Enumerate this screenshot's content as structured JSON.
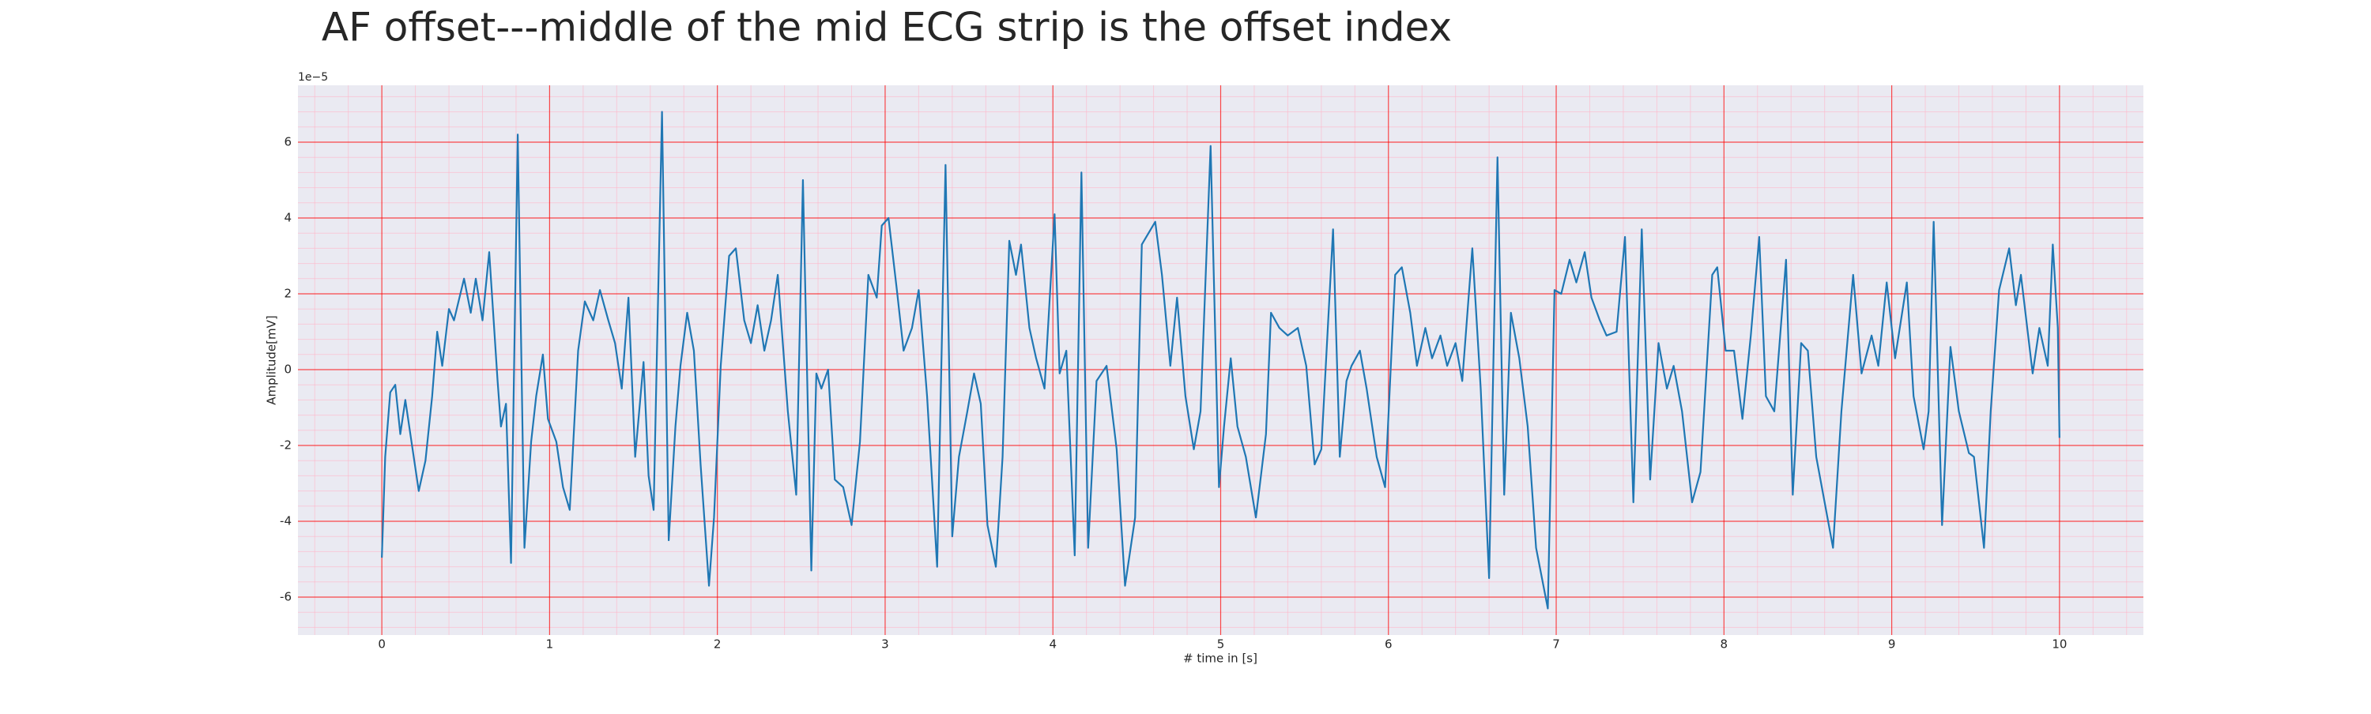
{
  "chart_data": {
    "type": "line",
    "title": "AF offset---middle of the mid ECG strip is the offset index",
    "x_label": "# time in [s]",
    "y_label": "Amplitude[mV]",
    "y_offset_text": "1e−5",
    "xlim": [
      -0.5,
      10.5
    ],
    "ylim": [
      -7,
      7.5
    ],
    "xticks": [
      0,
      1,
      2,
      3,
      4,
      5,
      6,
      7,
      8,
      9,
      10
    ],
    "yticks": [
      -6,
      -4,
      -2,
      0,
      2,
      4,
      6
    ],
    "grid": true,
    "grid_color": "#ff0000",
    "minor_grid": true,
    "minor_grid_color": "#ffb6c8",
    "minor_divisions": 5,
    "background": "#eaeaf2",
    "series": [
      {
        "name": "ECG",
        "color": "#1f77b4",
        "x": [
          0,
          0.02,
          0.05,
          0.08,
          0.11,
          0.14,
          0.17,
          0.22,
          0.26,
          0.3,
          0.33,
          0.36,
          0.4,
          0.43,
          0.49,
          0.53,
          0.56,
          0.6,
          0.64,
          0.69,
          0.71,
          0.74,
          0.77,
          0.81,
          0.85,
          0.89,
          0.92,
          0.96,
          0.99,
          1.04,
          1.08,
          1.12,
          1.17,
          1.21,
          1.26,
          1.3,
          1.35,
          1.39,
          1.43,
          1.47,
          1.51,
          1.56,
          1.59,
          1.62,
          1.67,
          1.71,
          1.75,
          1.78,
          1.82,
          1.86,
          1.9,
          1.95,
          1.98,
          2.02,
          2.07,
          2.11,
          2.16,
          2.2,
          2.24,
          2.28,
          2.32,
          2.36,
          2.42,
          2.47,
          2.51,
          2.56,
          2.59,
          2.62,
          2.66,
          2.7,
          2.75,
          2.8,
          2.85,
          2.9,
          2.95,
          2.98,
          3.02,
          3.07,
          3.11,
          3.16,
          3.2,
          3.25,
          3.31,
          3.36,
          3.4,
          3.44,
          3.49,
          3.53,
          3.57,
          3.61,
          3.66,
          3.7,
          3.74,
          3.78,
          3.81,
          3.86,
          3.9,
          3.95,
          4.01,
          4.04,
          4.08,
          4.13,
          4.17,
          4.21,
          4.26,
          4.32,
          4.38,
          4.43,
          4.49,
          4.53,
          4.61,
          4.65,
          4.7,
          4.74,
          4.79,
          4.84,
          4.88,
          4.94,
          4.99,
          5.02,
          5.06,
          5.1,
          5.15,
          5.21,
          5.27,
          5.3,
          5.35,
          5.4,
          5.46,
          5.51,
          5.56,
          5.6,
          5.67,
          5.71,
          5.75,
          5.78,
          5.83,
          5.87,
          5.93,
          5.98,
          6.04,
          6.08,
          6.13,
          6.17,
          6.22,
          6.26,
          6.31,
          6.35,
          6.4,
          6.44,
          6.5,
          6.55,
          6.6,
          6.65,
          6.69,
          6.73,
          6.78,
          6.83,
          6.88,
          6.95,
          6.99,
          7.03,
          7.08,
          7.12,
          7.17,
          7.21,
          7.26,
          7.3,
          7.36,
          7.41,
          7.46,
          7.51,
          7.56,
          7.61,
          7.66,
          7.7,
          7.75,
          7.81,
          7.86,
          7.93,
          7.96,
          8.01,
          8.06,
          8.11,
          8.16,
          8.21,
          8.25,
          8.3,
          8.37,
          8.41,
          8.46,
          8.5,
          8.55,
          8.65,
          8.7,
          8.77,
          8.82,
          8.88,
          8.92,
          8.97,
          9.02,
          9.09,
          9.13,
          9.19,
          9.22,
          9.25,
          9.3,
          9.35,
          9.4,
          9.46,
          9.49,
          9.55,
          9.59,
          9.64,
          9.7,
          9.74,
          9.77,
          9.84,
          9.88,
          9.93,
          9.96,
          9.99,
          10.0
        ],
        "values": [
          -4.96,
          -2.3,
          -0.6,
          -0.4,
          -1.7,
          -0.8,
          -1.7,
          -3.2,
          -2.4,
          -0.7,
          1.0,
          0.1,
          1.6,
          1.3,
          2.4,
          1.5,
          2.4,
          1.3,
          3.1,
          -0.3,
          -1.5,
          -0.9,
          -5.1,
          6.2,
          -4.7,
          -1.9,
          -0.7,
          0.4,
          -1.3,
          -1.9,
          -3.1,
          -3.7,
          0.5,
          1.8,
          1.3,
          2.1,
          1.3,
          0.7,
          -0.5,
          1.9,
          -2.3,
          0.2,
          -2.8,
          -3.7,
          6.8,
          -4.5,
          -1.5,
          0.1,
          1.5,
          0.5,
          -2.5,
          -5.7,
          -3.9,
          0.1,
          3.0,
          3.2,
          1.3,
          0.7,
          1.7,
          0.5,
          1.3,
          2.5,
          -1.1,
          -3.3,
          5.0,
          -5.3,
          -0.1,
          -0.5,
          0,
          -2.9,
          -3.1,
          -4.1,
          -1.9,
          2.5,
          1.9,
          3.8,
          4.0,
          2.1,
          0.5,
          1.1,
          2.1,
          -0.7,
          -5.2,
          5.4,
          -4.4,
          -2.3,
          -1.1,
          -0.1,
          -0.9,
          -4.1,
          -5.2,
          -2.3,
          3.4,
          2.5,
          3.3,
          1.1,
          0.3,
          -0.5,
          4.1,
          -0.1,
          0.5,
          -4.9,
          5.2,
          -4.7,
          -0.3,
          0.1,
          -2.1,
          -5.7,
          -3.9,
          3.3,
          3.9,
          2.5,
          0.1,
          1.9,
          -0.7,
          -2.1,
          -1.1,
          5.9,
          -3.1,
          -1.5,
          0.3,
          -1.5,
          -2.3,
          -3.9,
          -1.7,
          1.5,
          1.1,
          0.9,
          1.1,
          0.1,
          -2.5,
          -2.1,
          3.7,
          -2.3,
          -0.3,
          0.1,
          0.5,
          -0.5,
          -2.3,
          -3.1,
          2.5,
          2.7,
          1.5,
          0.1,
          1.1,
          0.3,
          0.9,
          0.1,
          0.7,
          -0.3,
          3.2,
          -0.5,
          -5.5,
          5.6,
          -3.3,
          1.5,
          0.3,
          -1.5,
          -4.7,
          -6.3,
          2.1,
          2.0,
          2.9,
          2.3,
          3.1,
          1.9,
          1.3,
          0.9,
          1.0,
          3.5,
          -3.5,
          3.7,
          -2.9,
          0.7,
          -0.5,
          0.1,
          -1.1,
          -3.5,
          -2.7,
          2.5,
          2.7,
          0.5,
          0.5,
          -1.3,
          0.9,
          3.5,
          -0.7,
          -1.1,
          2.9,
          -3.3,
          0.7,
          0.5,
          -2.3,
          -4.7,
          -1.1,
          2.5,
          -0.1,
          0.9,
          0.1,
          2.3,
          0.3,
          2.3,
          -0.7,
          -2.1,
          -1.1,
          3.9,
          -4.1,
          0.6,
          -1.1,
          -2.2,
          -2.3,
          -4.7,
          -1.1,
          2.1,
          3.2,
          1.7,
          2.5,
          -0.1,
          1.1,
          0.1,
          3.3,
          1.1,
          -1.8
        ]
      }
    ]
  }
}
